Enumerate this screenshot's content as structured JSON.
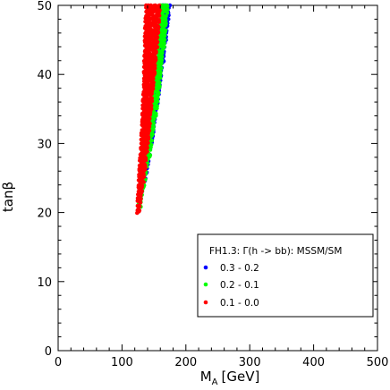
{
  "chart_data": {
    "type": "scatter",
    "title": "",
    "xlabel": {
      "main": "M",
      "sub": "A",
      "unit": "[GeV]"
    },
    "ylabel": {
      "main": "tan",
      "greek": "β"
    },
    "xlim": [
      0,
      500
    ],
    "ylim": [
      0,
      50
    ],
    "x_ticks": [
      0,
      100,
      200,
      300,
      400,
      500
    ],
    "y_ticks": [
      0,
      10,
      20,
      30,
      40,
      50
    ],
    "grid": false,
    "legend": {
      "title": "FH1.3: Γ(h -> bb): MSSM/SM",
      "placement": "lower-right",
      "entries": [
        "0.3 - 0.2",
        "0.2 - 0.1",
        "0.1 - 0.0"
      ]
    },
    "series": [
      {
        "name": "0.3 - 0.2",
        "color": "#0000ff",
        "band": [
          [
            23,
            128,
            132
          ],
          [
            26,
            134,
            139
          ],
          [
            30,
            141,
            147
          ],
          [
            34,
            146,
            153
          ],
          [
            38,
            151,
            159
          ],
          [
            42,
            156,
            165
          ],
          [
            46,
            159,
            170
          ],
          [
            48,
            162,
            173
          ],
          [
            50,
            163,
            175
          ]
        ]
      },
      {
        "name": "0.2 - 0.1",
        "color": "#00ff00",
        "band": [
          [
            21,
            126,
            129
          ],
          [
            24,
            130,
            135
          ],
          [
            28,
            137,
            143
          ],
          [
            32,
            143,
            150
          ],
          [
            36,
            148,
            156
          ],
          [
            40,
            153,
            161
          ],
          [
            44,
            157,
            166
          ],
          [
            48,
            160,
            170
          ],
          [
            50,
            161,
            172
          ]
        ]
      },
      {
        "name": "0.1 - 0.0",
        "color": "#ff0000",
        "band": [
          [
            20,
            124,
            127
          ],
          [
            22,
            125,
            130
          ],
          [
            26,
            127,
            136
          ],
          [
            30,
            130,
            141
          ],
          [
            34,
            132,
            145
          ],
          [
            38,
            134,
            149
          ],
          [
            42,
            135,
            153
          ],
          [
            46,
            136,
            157
          ],
          [
            50,
            138,
            160
          ]
        ]
      }
    ]
  }
}
